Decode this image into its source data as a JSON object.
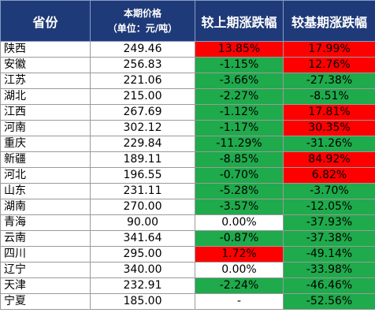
{
  "header": {
    "province": "省份",
    "price_line1": "本期价格",
    "price_line2": "（单位：元/吨）",
    "mom": "较上期涨跌幅",
    "yoy": "较基期涨跌幅"
  },
  "colors": {
    "header_bg": "#1f3a78",
    "up": "#fe0000",
    "down": "#1faa4c",
    "flat": "#ffffff"
  },
  "rows": [
    {
      "province": "陕西",
      "price": "249.46",
      "mom": "13.85%",
      "mom_dir": "up",
      "yoy": "17.99%",
      "yoy_dir": "up"
    },
    {
      "province": "安徽",
      "price": "256.83",
      "mom": "-1.15%",
      "mom_dir": "down",
      "yoy": "12.76%",
      "yoy_dir": "up"
    },
    {
      "province": "江苏",
      "price": "221.06",
      "mom": "-3.66%",
      "mom_dir": "down",
      "yoy": "-27.38%",
      "yoy_dir": "down"
    },
    {
      "province": "湖北",
      "price": "215.00",
      "mom": "-2.27%",
      "mom_dir": "down",
      "yoy": "-8.51%",
      "yoy_dir": "down"
    },
    {
      "province": "江西",
      "price": "267.69",
      "mom": "-1.12%",
      "mom_dir": "down",
      "yoy": "17.81%",
      "yoy_dir": "up"
    },
    {
      "province": "河南",
      "price": "302.12",
      "mom": "-1.17%",
      "mom_dir": "down",
      "yoy": "30.35%",
      "yoy_dir": "up"
    },
    {
      "province": "重庆",
      "price": "229.84",
      "mom": "-11.29%",
      "mom_dir": "down",
      "yoy": "-31.26%",
      "yoy_dir": "down"
    },
    {
      "province": "新疆",
      "price": "189.11",
      "mom": "-8.85%",
      "mom_dir": "down",
      "yoy": "84.92%",
      "yoy_dir": "up"
    },
    {
      "province": "河北",
      "price": "196.55",
      "mom": "-0.70%",
      "mom_dir": "down",
      "yoy": "6.82%",
      "yoy_dir": "up"
    },
    {
      "province": "山东",
      "price": "231.11",
      "mom": "-5.28%",
      "mom_dir": "down",
      "yoy": "-3.70%",
      "yoy_dir": "down"
    },
    {
      "province": "湖南",
      "price": "270.00",
      "mom": "-3.57%",
      "mom_dir": "down",
      "yoy": "-12.05%",
      "yoy_dir": "down"
    },
    {
      "province": "青海",
      "price": "90.00",
      "mom": "0.00%",
      "mom_dir": "flat",
      "yoy": "-37.93%",
      "yoy_dir": "down"
    },
    {
      "province": "云南",
      "price": "341.64",
      "mom": "-0.87%",
      "mom_dir": "down",
      "yoy": "-37.38%",
      "yoy_dir": "down"
    },
    {
      "province": "四川",
      "price": "295.00",
      "mom": "1.72%",
      "mom_dir": "up",
      "yoy": "-49.14%",
      "yoy_dir": "down"
    },
    {
      "province": "辽宁",
      "price": "340.00",
      "mom": "0.00%",
      "mom_dir": "flat",
      "yoy": "-33.98%",
      "yoy_dir": "down"
    },
    {
      "province": "天津",
      "price": "232.91",
      "mom": "-2.24%",
      "mom_dir": "down",
      "yoy": "-46.46%",
      "yoy_dir": "down"
    },
    {
      "province": "宁夏",
      "price": "185.00",
      "mom": "-",
      "mom_dir": "flat",
      "yoy": "-52.56%",
      "yoy_dir": "down"
    }
  ]
}
